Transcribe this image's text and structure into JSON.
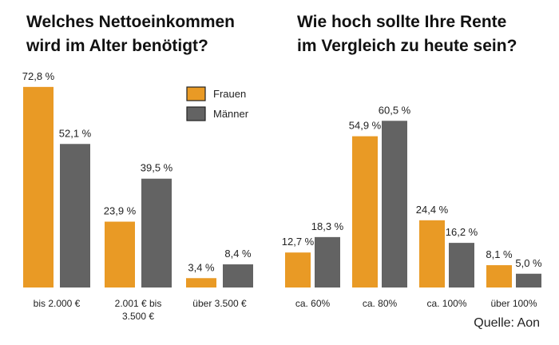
{
  "chart_data": [
    {
      "type": "bar",
      "title": "Welches Nettoeinkommen wird im Alter benötigt?",
      "categories": [
        "bis 2.000 €",
        "2.001 € bis 3.500 €",
        "über 3.500 €"
      ],
      "category_lines": [
        [
          "bis 2.000 €"
        ],
        [
          "2.001 € bis",
          "3.500 €"
        ],
        [
          "über 3.500 €"
        ]
      ],
      "series": [
        {
          "name": "Frauen",
          "values": [
            72.8,
            23.9,
            3.4
          ],
          "labels": [
            "72,8 %",
            "23,9 %",
            "3,4 %"
          ]
        },
        {
          "name": "Männer",
          "values": [
            52.1,
            39.5,
            8.4
          ],
          "labels": [
            "52,1 %",
            "39,5 %",
            "8,4 %"
          ]
        }
      ],
      "legend": "top-right",
      "grid": false,
      "ylim": [
        0,
        75
      ]
    },
    {
      "type": "bar",
      "title": "Wie hoch sollte Ihre Rente im Vergleich zu heute sein?",
      "categories": [
        "ca. 60%",
        "ca. 80%",
        "ca. 100%",
        "über 100%"
      ],
      "category_lines": [
        [
          "ca. 60%"
        ],
        [
          "ca. 80%"
        ],
        [
          "ca. 100%"
        ],
        [
          "über 100%"
        ]
      ],
      "series": [
        {
          "name": "Frauen",
          "values": [
            12.7,
            54.9,
            24.4,
            8.1
          ],
          "labels": [
            "12,7 %",
            "54,9 %",
            "24,4 %",
            "8,1 %"
          ]
        },
        {
          "name": "Männer",
          "values": [
            18.3,
            60.5,
            16.2,
            5.0
          ],
          "labels": [
            "18,3 %",
            "60,5 %",
            "16,2 %",
            "5,0 %"
          ]
        }
      ],
      "grid": false,
      "ylim": [
        0,
        75
      ]
    }
  ],
  "titles": {
    "left": [
      "Welches Nettoeinkommen",
      "wird im Alter benötigt?"
    ],
    "right": [
      "Wie hoch sollte Ihre Rente",
      "im Vergleich zu heute sein?"
    ]
  },
  "legend": {
    "frauen": "Frauen",
    "maenner": "Männer"
  },
  "colors": {
    "frauen": "#E99A25",
    "maenner": "#636363"
  },
  "source": "Quelle: Aon"
}
